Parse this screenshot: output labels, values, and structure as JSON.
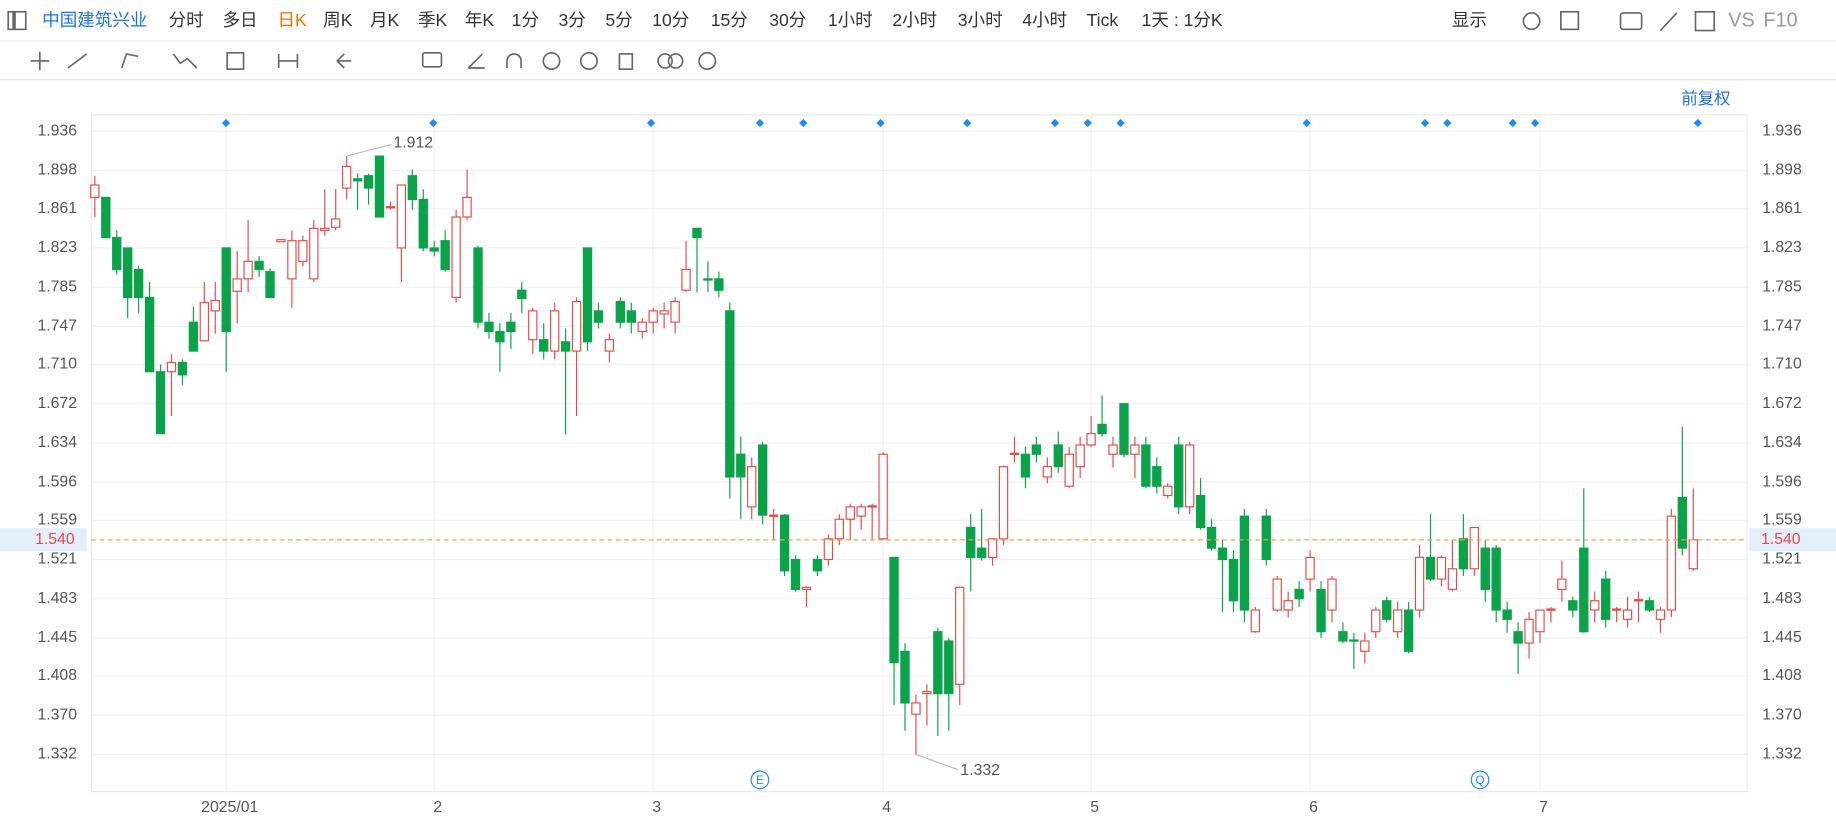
{
  "toolbar": {
    "symbol": "中国建筑兴业",
    "periods": [
      "分时",
      "多日",
      "日K",
      "周K",
      "月K",
      "季K",
      "年K",
      "1分",
      "3分",
      "5分",
      "10分",
      "15分",
      "30分",
      "1小时",
      "2小时",
      "3小时",
      "4小时",
      "Tick"
    ],
    "active_period": "日K",
    "interval": "1天 : 1分K",
    "display": "显示",
    "vs": "VS",
    "f10": "F10"
  },
  "adjust": "前复权",
  "chart_data": {
    "type": "candlestick",
    "categories": [
      null,
      null,
      null,
      null,
      null,
      null,
      null,
      null,
      null,
      null,
      null,
      null,
      "2025/01",
      null,
      null,
      null,
      null,
      null,
      null,
      null,
      null,
      null,
      null,
      null,
      null,
      null,
      null,
      null,
      null,
      null,
      null,
      "2",
      null,
      null,
      null,
      null,
      null,
      null,
      null,
      null,
      null,
      null,
      null,
      null,
      null,
      null,
      null,
      null,
      null,
      null,
      null,
      "3",
      null,
      null,
      null,
      null,
      null,
      null,
      null,
      null,
      null,
      null,
      null,
      null,
      null,
      null,
      null,
      null,
      null,
      null,
      null,
      null,
      "4",
      null,
      null,
      null,
      null,
      null,
      null,
      null,
      null,
      null,
      null,
      null,
      null,
      null,
      null,
      null,
      null,
      null,
      null,
      "5",
      null,
      null,
      null,
      null,
      null,
      null,
      null,
      null,
      null,
      null,
      null,
      null,
      null,
      null,
      null,
      null,
      null,
      null,
      null,
      "6",
      null,
      null,
      null,
      null,
      null,
      null,
      null,
      null,
      null,
      null,
      null,
      null,
      null,
      null,
      null,
      null,
      null,
      null,
      null,
      null,
      "7",
      null,
      null,
      null,
      null,
      null,
      null,
      null,
      null,
      null,
      null,
      null,
      null,
      null,
      null,
      null
    ],
    "ohlc": [
      [
        1.872,
        1.893,
        1.853,
        1.884
      ],
      [
        1.872,
        1.872,
        1.833,
        1.833
      ],
      [
        1.833,
        1.84,
        1.797,
        1.802
      ],
      [
        1.823,
        1.823,
        1.755,
        1.775
      ],
      [
        1.802,
        1.806,
        1.76,
        1.775
      ],
      [
        1.775,
        1.79,
        1.703,
        1.703
      ],
      [
        1.703,
        1.71,
        1.643,
        1.643
      ],
      [
        1.703,
        1.72,
        1.66,
        1.712
      ],
      [
        1.712,
        1.715,
        1.69,
        1.7
      ],
      [
        1.751,
        1.766,
        1.723,
        1.723
      ],
      [
        1.733,
        1.79,
        1.733,
        1.77
      ],
      [
        1.762,
        1.79,
        1.74,
        1.772
      ],
      [
        1.823,
        1.823,
        1.703,
        1.742
      ],
      [
        1.781,
        1.82,
        1.75,
        1.793
      ],
      [
        1.793,
        1.85,
        1.78,
        1.81
      ],
      [
        1.81,
        1.815,
        1.795,
        1.802
      ],
      [
        1.8,
        1.803,
        1.775,
        1.775
      ],
      [
        1.829,
        1.831,
        1.829,
        1.831
      ],
      [
        1.793,
        1.84,
        1.765,
        1.83
      ],
      [
        1.81,
        1.835,
        1.805,
        1.83
      ],
      [
        1.793,
        1.85,
        1.79,
        1.842
      ],
      [
        1.84,
        1.88,
        1.835,
        1.842
      ],
      [
        1.843,
        1.88,
        1.84,
        1.851
      ],
      [
        1.881,
        1.912,
        1.87,
        1.902
      ],
      [
        1.89,
        1.895,
        1.86,
        1.888
      ],
      [
        1.893,
        1.895,
        1.865,
        1.881
      ],
      [
        1.912,
        1.912,
        1.853,
        1.853
      ],
      [
        1.863,
        1.868,
        1.86,
        1.863
      ],
      [
        1.823,
        1.884,
        1.79,
        1.884
      ],
      [
        1.893,
        1.899,
        1.86,
        1.87
      ],
      [
        1.87,
        1.88,
        1.82,
        1.823
      ],
      [
        1.823,
        1.83,
        1.815,
        1.82
      ],
      [
        1.83,
        1.84,
        1.8,
        1.802
      ],
      [
        1.775,
        1.86,
        1.77,
        1.853
      ],
      [
        1.853,
        1.899,
        1.85,
        1.872
      ],
      [
        1.823,
        1.825,
        1.745,
        1.751
      ],
      [
        1.751,
        1.76,
        1.735,
        1.742
      ],
      [
        1.742,
        1.75,
        1.703,
        1.732
      ],
      [
        1.751,
        1.76,
        1.725,
        1.742
      ],
      [
        1.782,
        1.79,
        1.76,
        1.774
      ],
      [
        1.734,
        1.765,
        1.72,
        1.762
      ],
      [
        1.734,
        1.75,
        1.715,
        1.723
      ],
      [
        1.723,
        1.77,
        1.715,
        1.762
      ],
      [
        1.732,
        1.745,
        1.642,
        1.723
      ],
      [
        1.723,
        1.775,
        1.66,
        1.771
      ],
      [
        1.823,
        1.823,
        1.723,
        1.732
      ],
      [
        1.762,
        1.77,
        1.745,
        1.751
      ],
      [
        1.723,
        1.74,
        1.712,
        1.734
      ],
      [
        1.771,
        1.775,
        1.745,
        1.751
      ],
      [
        1.762,
        1.77,
        1.74,
        1.751
      ],
      [
        1.742,
        1.755,
        1.735,
        1.751
      ],
      [
        1.751,
        1.765,
        1.74,
        1.762
      ],
      [
        1.759,
        1.77,
        1.745,
        1.762
      ],
      [
        1.751,
        1.775,
        1.74,
        1.771
      ],
      [
        1.782,
        1.83,
        1.78,
        1.802
      ],
      [
        1.842,
        1.842,
        1.78,
        1.833
      ],
      [
        1.793,
        1.81,
        1.78,
        1.792
      ],
      [
        1.793,
        1.8,
        1.775,
        1.782
      ],
      [
        1.762,
        1.77,
        1.58,
        1.601
      ],
      [
        1.623,
        1.64,
        1.56,
        1.601
      ],
      [
        1.572,
        1.62,
        1.56,
        1.611
      ],
      [
        1.632,
        1.635,
        1.555,
        1.564
      ],
      [
        1.564,
        1.57,
        1.54,
        1.564
      ],
      [
        1.564,
        1.565,
        1.505,
        1.51
      ],
      [
        1.521,
        1.525,
        1.49,
        1.492
      ],
      [
        1.492,
        1.495,
        1.475,
        1.494
      ],
      [
        1.521,
        1.525,
        1.505,
        1.51
      ],
      [
        1.521,
        1.545,
        1.515,
        1.541
      ],
      [
        1.541,
        1.565,
        1.535,
        1.56
      ],
      [
        1.56,
        1.575,
        1.54,
        1.572
      ],
      [
        1.563,
        1.575,
        1.55,
        1.572
      ],
      [
        1.572,
        1.575,
        1.54,
        1.573
      ],
      [
        1.541,
        1.625,
        1.54,
        1.623
      ],
      [
        1.523,
        1.523,
        1.38,
        1.421
      ],
      [
        1.432,
        1.44,
        1.355,
        1.382
      ],
      [
        1.371,
        1.39,
        1.332,
        1.382
      ],
      [
        1.391,
        1.4,
        1.36,
        1.393
      ],
      [
        1.451,
        1.455,
        1.35,
        1.391
      ],
      [
        1.442,
        1.445,
        1.355,
        1.391
      ],
      [
        1.4,
        1.495,
        1.38,
        1.494
      ],
      [
        1.552,
        1.565,
        1.49,
        1.523
      ],
      [
        1.532,
        1.57,
        1.52,
        1.523
      ],
      [
        1.523,
        1.535,
        1.515,
        1.541
      ],
      [
        1.541,
        1.612,
        1.535,
        1.611
      ],
      [
        1.623,
        1.64,
        1.615,
        1.624
      ],
      [
        1.623,
        1.63,
        1.59,
        1.601
      ],
      [
        1.632,
        1.64,
        1.615,
        1.623
      ],
      [
        1.601,
        1.62,
        1.595,
        1.611
      ],
      [
        1.632,
        1.645,
        1.605,
        1.611
      ],
      [
        1.592,
        1.63,
        1.59,
        1.623
      ],
      [
        1.611,
        1.64,
        1.6,
        1.632
      ],
      [
        1.632,
        1.66,
        1.63,
        1.643
      ],
      [
        1.652,
        1.68,
        1.64,
        1.643
      ],
      [
        1.623,
        1.64,
        1.61,
        1.632
      ],
      [
        1.672,
        1.672,
        1.62,
        1.623
      ],
      [
        1.623,
        1.64,
        1.6,
        1.632
      ],
      [
        1.632,
        1.64,
        1.59,
        1.592
      ],
      [
        1.611,
        1.62,
        1.585,
        1.592
      ],
      [
        1.583,
        1.595,
        1.58,
        1.592
      ],
      [
        1.632,
        1.64,
        1.565,
        1.572
      ],
      [
        1.572,
        1.635,
        1.565,
        1.632
      ],
      [
        1.583,
        1.6,
        1.55,
        1.552
      ],
      [
        1.552,
        1.56,
        1.53,
        1.532
      ],
      [
        1.532,
        1.54,
        1.47,
        1.521
      ],
      [
        1.521,
        1.53,
        1.47,
        1.481
      ],
      [
        1.563,
        1.57,
        1.46,
        1.472
      ],
      [
        1.451,
        1.475,
        1.45,
        1.472
      ],
      [
        1.563,
        1.57,
        1.515,
        1.521
      ],
      [
        1.472,
        1.505,
        1.47,
        1.502
      ],
      [
        1.472,
        1.49,
        1.465,
        1.481
      ],
      [
        1.492,
        1.5,
        1.475,
        1.483
      ],
      [
        1.502,
        1.53,
        1.49,
        1.523
      ],
      [
        1.492,
        1.5,
        1.445,
        1.451
      ],
      [
        1.472,
        1.505,
        1.46,
        1.502
      ],
      [
        1.451,
        1.46,
        1.44,
        1.442
      ],
      [
        1.443,
        1.45,
        1.415,
        1.442
      ],
      [
        1.432,
        1.45,
        1.42,
        1.442
      ],
      [
        1.451,
        1.475,
        1.445,
        1.472
      ],
      [
        1.481,
        1.485,
        1.46,
        1.463
      ],
      [
        1.451,
        1.48,
        1.445,
        1.472
      ],
      [
        1.472,
        1.48,
        1.43,
        1.432
      ],
      [
        1.472,
        1.535,
        1.465,
        1.523
      ],
      [
        1.523,
        1.565,
        1.5,
        1.502
      ],
      [
        1.502,
        1.525,
        1.495,
        1.523
      ],
      [
        1.492,
        1.54,
        1.49,
        1.512
      ],
      [
        1.541,
        1.565,
        1.505,
        1.512
      ],
      [
        1.512,
        1.552,
        1.505,
        1.552
      ],
      [
        1.532,
        1.54,
        1.48,
        1.492
      ],
      [
        1.532,
        1.535,
        1.46,
        1.472
      ],
      [
        1.472,
        1.48,
        1.45,
        1.463
      ],
      [
        1.451,
        1.46,
        1.41,
        1.44
      ],
      [
        1.44,
        1.47,
        1.425,
        1.463
      ],
      [
        1.451,
        1.47,
        1.44,
        1.472
      ],
      [
        1.472,
        1.475,
        1.46,
        1.473
      ],
      [
        1.492,
        1.52,
        1.48,
        1.502
      ],
      [
        1.481,
        1.485,
        1.465,
        1.472
      ],
      [
        1.532,
        1.59,
        1.45,
        1.451
      ],
      [
        1.472,
        1.49,
        1.46,
        1.481
      ],
      [
        1.502,
        1.51,
        1.455,
        1.463
      ],
      [
        1.472,
        1.475,
        1.46,
        1.473
      ],
      [
        1.463,
        1.485,
        1.455,
        1.472
      ],
      [
        1.481,
        1.49,
        1.46,
        1.482
      ],
      [
        1.481,
        1.485,
        1.47,
        1.472
      ],
      [
        1.463,
        1.475,
        1.45,
        1.472
      ],
      [
        1.472,
        1.57,
        1.465,
        1.563
      ],
      [
        1.581,
        1.65,
        1.525,
        1.532
      ],
      [
        1.512,
        1.59,
        1.51,
        1.54
      ]
    ],
    "up_color": "#e84a4a",
    "down_color": "#0aa34a",
    "ylim": [
      1.296,
      1.952
    ],
    "yticks": [
      1.936,
      1.898,
      1.861,
      1.823,
      1.785,
      1.747,
      {
        "value": 1.71,
        "label": "1.710"
      },
      1.672,
      1.634,
      1.596,
      1.559,
      1.521,
      1.483,
      1.445,
      1.408,
      {
        "value": 1.37,
        "label": "1.370"
      },
      1.332
    ],
    "grid": true,
    "high_label": 1.912,
    "low_label": 1.332,
    "last_price": {
      "value": 1.54,
      "label": "1.540"
    },
    "event_markers": [
      "E",
      "Q"
    ]
  }
}
